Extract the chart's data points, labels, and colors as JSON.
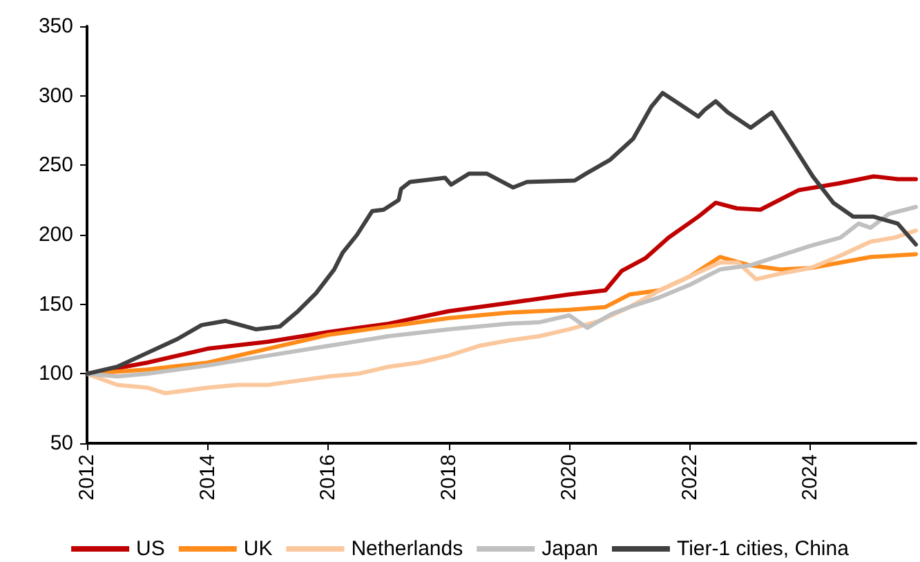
{
  "chart_data": {
    "type": "line",
    "xlim": [
      2012,
      2025.75
    ],
    "xticks": [
      2012,
      2014,
      2016,
      2018,
      2020,
      2022,
      2024
    ],
    "ylim": [
      50,
      350
    ],
    "yticks": [
      50,
      100,
      150,
      200,
      250,
      300,
      350
    ],
    "grid": false,
    "legend": "bottom",
    "marker": "none",
    "line_style": "solid",
    "series": [
      {
        "name": "US",
        "color": "#c00000",
        "x": [
          2012,
          2013,
          2014,
          2015,
          2016,
          2017,
          2018,
          2019,
          2020,
          2020.6,
          2020.87,
          2021.26,
          2021.65,
          2022.14,
          2022.43,
          2022.78,
          2023.17,
          2023.8,
          2024.48,
          2025.05,
          2025.45,
          2025.75
        ],
        "values": [
          100,
          108,
          118,
          123,
          130,
          136,
          145,
          151,
          157,
          160,
          174,
          183,
          198,
          213,
          223,
          219,
          218,
          232,
          237,
          242,
          240,
          240
        ]
      },
      {
        "name": "UK",
        "color": "#ff8c1a",
        "x": [
          2012,
          2013,
          2014,
          2015,
          2016,
          2017,
          2018,
          2019,
          2020,
          2020.6,
          2021,
          2021.5,
          2022,
          2022.5,
          2023,
          2023.5,
          2024,
          2024.5,
          2025,
          2025.75
        ],
        "values": [
          100,
          103,
          108,
          118,
          128,
          134,
          140,
          144,
          146,
          148,
          157,
          160,
          170,
          184,
          178,
          175,
          176,
          180,
          184,
          186
        ]
      },
      {
        "name": "Netherlands",
        "color": "#fbc89e",
        "x": [
          2012,
          2012.5,
          2013,
          2013.3,
          2014,
          2014.5,
          2015,
          2015.5,
          2016,
          2016.5,
          2017,
          2017.5,
          2018,
          2018.5,
          2019,
          2019.5,
          2020,
          2020.5,
          2021,
          2021.5,
          2022,
          2022.5,
          2022.8,
          2023.1,
          2023.5,
          2024,
          2024.5,
          2025,
          2025.4,
          2025.75
        ],
        "values": [
          100,
          92,
          90,
          86,
          90,
          92,
          92,
          95,
          98,
          100,
          105,
          108,
          113,
          120,
          124,
          127,
          132,
          138,
          148,
          160,
          170,
          180,
          180,
          168,
          172,
          176,
          185,
          195,
          198,
          203
        ]
      },
      {
        "name": "Japan",
        "color": "#c0c0c0",
        "x": [
          2012,
          2012.5,
          2013,
          2014,
          2015,
          2016,
          2017,
          2018,
          2019,
          2019.5,
          2020,
          2020.3,
          2020.7,
          2021,
          2021.5,
          2022,
          2022.5,
          2023,
          2023.5,
          2024,
          2024.5,
          2024.8,
          2025,
          2025.3,
          2025.75
        ],
        "values": [
          100,
          98,
          100,
          106,
          113,
          120,
          127,
          132,
          136,
          137,
          142,
          133,
          143,
          148,
          155,
          164,
          175,
          178,
          185,
          192,
          198,
          208,
          205,
          215,
          220
        ]
      },
      {
        "name": "Tier-1 cities, China",
        "color": "#404040",
        "x": [
          2012,
          2012.5,
          2013,
          2013.5,
          2013.9,
          2014.3,
          2014.8,
          2015.2,
          2015.5,
          2015.8,
          2016.1,
          2016.24,
          2016.48,
          2016.73,
          2016.92,
          2017.17,
          2017.21,
          2017.36,
          2017.94,
          2018.04,
          2018.34,
          2018.63,
          2019.07,
          2019.3,
          2020.09,
          2020.28,
          2020.68,
          2021.06,
          2021.36,
          2021.55,
          2021.76,
          2022.14,
          2022.25,
          2022.43,
          2022.63,
          2023.01,
          2023.36,
          2023.6,
          2024.04,
          2024.38,
          2024.71,
          2025.05,
          2025.45,
          2025.75
        ],
        "values": [
          100,
          105,
          115,
          125,
          135,
          138,
          132,
          134,
          145,
          158,
          175,
          187,
          200,
          217,
          218,
          225,
          233,
          238,
          241,
          236,
          244,
          244,
          234,
          238,
          239,
          244,
          254,
          269,
          292,
          302,
          296,
          285,
          290,
          296,
          288,
          277,
          288,
          272,
          242,
          223,
          213,
          213,
          208,
          193
        ]
      }
    ]
  }
}
